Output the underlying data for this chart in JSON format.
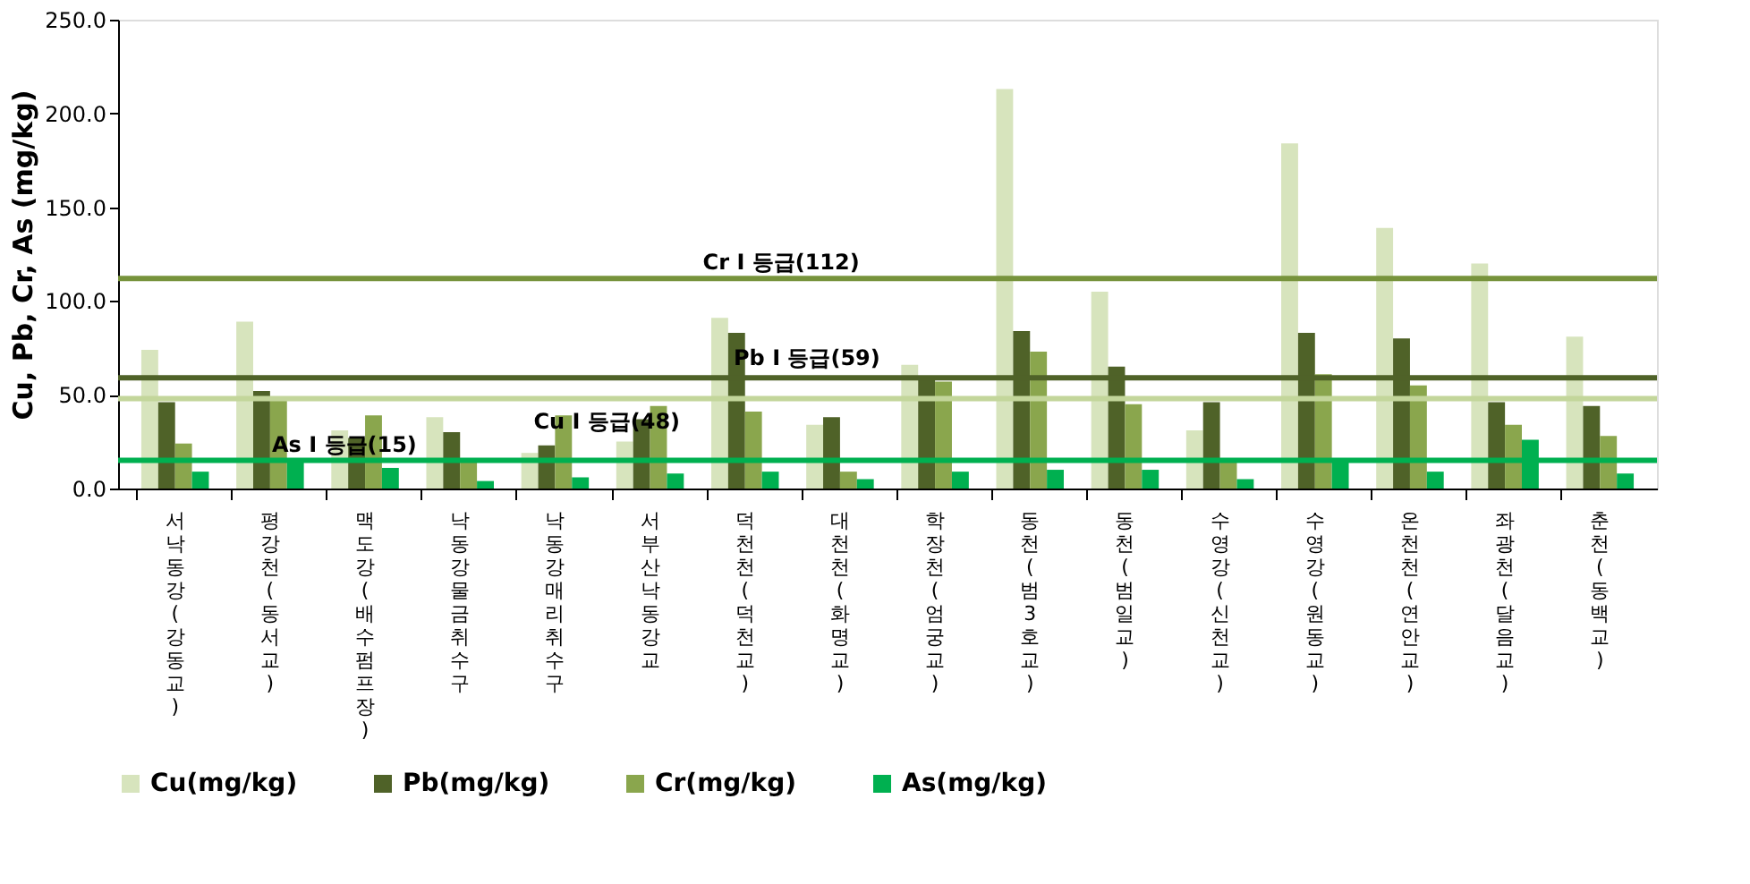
{
  "chart_data": {
    "type": "bar",
    "ylabel": "Cu, Pb, Cr, As (mg/kg)",
    "categories": [
      "서낙동강(강동교)",
      "평강천(동서교)",
      "맥도강(배수펌프장)",
      "낙동강 물금취수구",
      "낙동강 매리취수구",
      "서부산낙동강교",
      "덕천천(덕천교)",
      "대천천(화명교)",
      "학장천(엄궁교)",
      "동천(범3호교)",
      "동천(범일교)",
      "수영강(신천교)",
      "수영강(원동교)",
      "온천천(연안교)",
      "좌광천(달음교)",
      "춘천(동백교)"
    ],
    "series": [
      {
        "name": "Cu(mg/kg)",
        "color": "#d7e4bd",
        "values": [
          74,
          89,
          31,
          38,
          19,
          25,
          91,
          34,
          66,
          213,
          105,
          31,
          184,
          139,
          120,
          81
        ]
      },
      {
        "name": "Pb(mg/kg)",
        "color": "#4f6228",
        "values": [
          46,
          52,
          27,
          30,
          23,
          37,
          83,
          38,
          59,
          84,
          65,
          46,
          83,
          80,
          46,
          44
        ]
      },
      {
        "name": "Cr(mg/kg)",
        "color": "#8aa64d",
        "values": [
          24,
          48,
          39,
          14,
          39,
          44,
          41,
          9,
          57,
          73,
          45,
          14,
          61,
          55,
          34,
          28
        ]
      },
      {
        "name": "As(mg/kg)",
        "color": "#00b050",
        "values": [
          9,
          16,
          11,
          4,
          6,
          8,
          9,
          5,
          9,
          10,
          10,
          5,
          15,
          9,
          26,
          8
        ]
      }
    ],
    "ylim": [
      0,
      250
    ],
    "yticks": [
      {
        "value": 0,
        "label": "0.0"
      },
      {
        "value": 50,
        "label": "50.0"
      },
      {
        "value": 100,
        "label": "100.0"
      },
      {
        "value": 150,
        "label": "150.0"
      },
      {
        "value": 200,
        "label": "200.0"
      },
      {
        "value": 250,
        "label": "250.0"
      }
    ],
    "ref_lines": [
      {
        "axis": "y",
        "value": 112,
        "label": "Cr Ⅰ 등급(112)",
        "color": "#77933c"
      },
      {
        "axis": "y",
        "value": 59,
        "label": "Pb Ⅰ 등급(59)",
        "color": "#4f6228"
      },
      {
        "axis": "y",
        "value": 48,
        "label": "Cu Ⅰ 등급(48)",
        "color": "#c3d69b"
      },
      {
        "axis": "y",
        "value": 15,
        "label": "As Ⅰ 등급(15)",
        "color": "#00b050"
      }
    ],
    "legend": "bottom",
    "grid": false
  }
}
